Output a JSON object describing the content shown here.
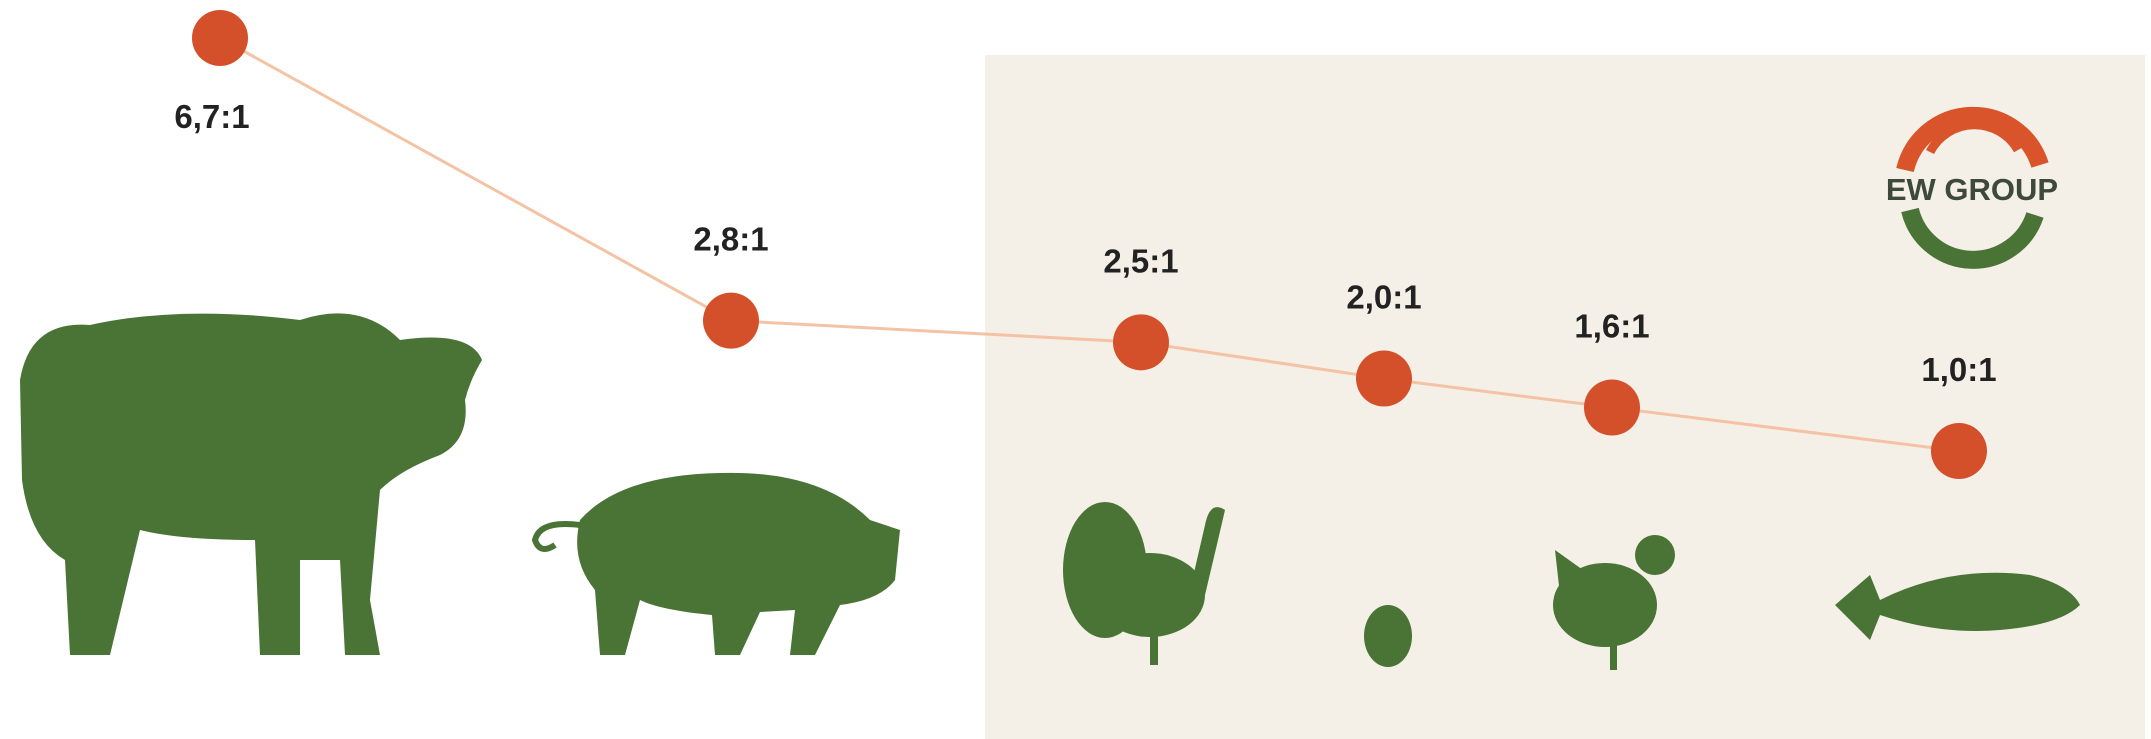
{
  "chart_data": {
    "type": "line",
    "categories": [
      null,
      null,
      null,
      null,
      null,
      null
    ],
    "values": [
      6.7,
      2.8,
      2.5,
      2.0,
      1.6,
      1.0
    ],
    "value_labels": [
      "6,7:1",
      "2,8:1",
      "2,5:1",
      "2,0:1",
      "1,6:1",
      "1,0:1"
    ],
    "line_color": "#f4c3a6",
    "marker_color": "#d4502a"
  },
  "logo": "EW GROUP"
}
